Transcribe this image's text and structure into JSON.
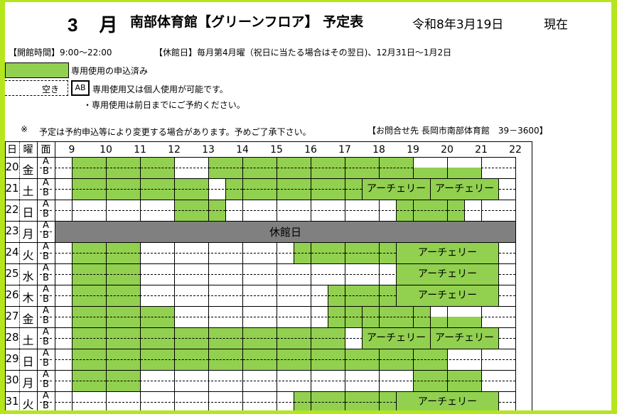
{
  "header": {
    "month": "3　月",
    "title": "南部体育館【グリーンフロア】 予定表",
    "date": "令和8年3月19日",
    "as_of": "現在"
  },
  "info": {
    "hours": "【開館時間】9:00～22:00",
    "closed_days": "【休館日】毎月第4月曜（祝日に当たる場合はその翌日)、12月31日～1月2日",
    "legend_booked": "専用使用の申込済み",
    "legend_empty": "空き",
    "legend_ab": "AB",
    "legend_ab_text": "専用使用又は個人使用が可能です。",
    "note_prior_day": "・専用使用は前日までにご予約ください。",
    "note_mark": "※",
    "note_change": "予定は予約申込等により変更する場合があります。予めご了承下さい。",
    "contact": "【お問合せ先 長岡市南部体育館　39－3600】"
  },
  "colors": {
    "booked": "#92d050",
    "closed": "#808080",
    "frame": "#b5e61d"
  },
  "table": {
    "col_day": "日",
    "col_weekday": "曜",
    "col_face": "面",
    "face_a": "A",
    "face_b": "B",
    "hours": [
      "9",
      "10",
      "11",
      "12",
      "13",
      "14",
      "15",
      "16",
      "17",
      "18",
      "19",
      "20",
      "21",
      "22"
    ],
    "rows": [
      {
        "day": "20",
        "weekday": "金",
        "blocks": [
          {
            "s": 9,
            "e": 10,
            "f": "AB"
          },
          {
            "s": 10,
            "e": 11,
            "f": "AB"
          },
          {
            "s": 11,
            "e": 12,
            "f": "AB"
          },
          {
            "s": 13,
            "e": 14,
            "f": "AB"
          },
          {
            "s": 14,
            "e": 15,
            "f": "AB"
          },
          {
            "s": 15,
            "e": 16,
            "f": "AB"
          },
          {
            "s": 16,
            "e": 17,
            "f": "AB"
          },
          {
            "s": 17,
            "e": 18,
            "f": "AB"
          },
          {
            "s": 18,
            "e": 19,
            "f": "AB"
          },
          {
            "s": 19,
            "e": 20,
            "f": "B"
          },
          {
            "s": 20,
            "e": 21,
            "f": "B"
          }
        ]
      },
      {
        "day": "21",
        "weekday": "土",
        "blocks": [
          {
            "s": 9,
            "e": 10,
            "f": "AB"
          },
          {
            "s": 10,
            "e": 11,
            "f": "AB"
          },
          {
            "s": 11,
            "e": 12,
            "f": "AB"
          },
          {
            "s": 12,
            "e": 13,
            "f": "AB"
          },
          {
            "s": 13.5,
            "e": 14,
            "f": "AB"
          },
          {
            "s": 14,
            "e": 15,
            "f": "AB"
          },
          {
            "s": 15,
            "e": 16,
            "f": "AB"
          },
          {
            "s": 16,
            "e": 17,
            "f": "AB"
          },
          {
            "s": 17,
            "e": 17.5,
            "f": "AB"
          },
          {
            "s": 17.5,
            "e": 19.5,
            "f": "AB",
            "label": "アーチェリー"
          },
          {
            "s": 19.5,
            "e": 21.5,
            "f": "AB",
            "label": "アーチェリー"
          }
        ]
      },
      {
        "day": "22",
        "weekday": "日",
        "blocks": [
          {
            "s": 12,
            "e": 13,
            "f": "AB"
          },
          {
            "s": 13,
            "e": 13.5,
            "f": "AB"
          },
          {
            "s": 18.5,
            "e": 19,
            "f": "AB"
          },
          {
            "s": 19,
            "e": 20,
            "f": "AB"
          },
          {
            "s": 20,
            "e": 20.5,
            "f": "AB"
          }
        ]
      },
      {
        "day": "23",
        "weekday": "月",
        "closed": "休館日",
        "blocks": []
      },
      {
        "day": "24",
        "weekday": "火",
        "blocks": [
          {
            "s": 9,
            "e": 10,
            "f": "AB"
          },
          {
            "s": 10,
            "e": 11,
            "f": "AB"
          },
          {
            "s": 15.5,
            "e": 16,
            "f": "AB"
          },
          {
            "s": 16,
            "e": 17,
            "f": "AB"
          },
          {
            "s": 17,
            "e": 18,
            "f": "AB"
          },
          {
            "s": 18,
            "e": 18.5,
            "f": "AB"
          },
          {
            "s": 18.5,
            "e": 21.5,
            "f": "AB",
            "label": "アーチェリー"
          }
        ]
      },
      {
        "day": "25",
        "weekday": "水",
        "blocks": [
          {
            "s": 9,
            "e": 10,
            "f": "AB"
          },
          {
            "s": 10,
            "e": 11,
            "f": "AB"
          },
          {
            "s": 18.5,
            "e": 21.5,
            "f": "AB",
            "label": "アーチェリー"
          }
        ]
      },
      {
        "day": "26",
        "weekday": "木",
        "blocks": [
          {
            "s": 9,
            "e": 10,
            "f": "AB"
          },
          {
            "s": 10,
            "e": 11,
            "f": "AB"
          },
          {
            "s": 16.5,
            "e": 17,
            "f": "AB"
          },
          {
            "s": 17,
            "e": 18,
            "f": "AB"
          },
          {
            "s": 18,
            "e": 18.5,
            "f": "AB"
          },
          {
            "s": 18.5,
            "e": 21.5,
            "f": "AB",
            "label": "アーチェリー"
          }
        ]
      },
      {
        "day": "27",
        "weekday": "金",
        "blocks": [
          {
            "s": 9,
            "e": 10,
            "f": "AB"
          },
          {
            "s": 10,
            "e": 11,
            "f": "AB"
          },
          {
            "s": 11,
            "e": 12,
            "f": "AB"
          },
          {
            "s": 16.5,
            "e": 17,
            "f": "AB"
          },
          {
            "s": 17,
            "e": 17.5,
            "f": "AB"
          },
          {
            "s": 17.5,
            "e": 18,
            "f": "AB"
          },
          {
            "s": 18,
            "e": 19,
            "f": "AB"
          },
          {
            "s": 19,
            "e": 19.5,
            "f": "AB"
          },
          {
            "s": 19.5,
            "e": 20,
            "f": "B"
          },
          {
            "s": 20,
            "e": 21,
            "f": "B"
          }
        ]
      },
      {
        "day": "28",
        "weekday": "土",
        "blocks": [
          {
            "s": 9,
            "e": 10,
            "f": "AB"
          },
          {
            "s": 10,
            "e": 11,
            "f": "AB"
          },
          {
            "s": 11,
            "e": 12,
            "f": "AB"
          },
          {
            "s": 12,
            "e": 13,
            "f": "AB"
          },
          {
            "s": 13,
            "e": 14,
            "f": "AB"
          },
          {
            "s": 14,
            "e": 15,
            "f": "AB"
          },
          {
            "s": 15,
            "e": 16,
            "f": "AB"
          },
          {
            "s": 16,
            "e": 17,
            "f": "AB"
          },
          {
            "s": 17.5,
            "e": 19.5,
            "f": "AB",
            "label": "アーチェリー"
          },
          {
            "s": 19.5,
            "e": 21.5,
            "f": "AB",
            "label": "アーチェリー"
          }
        ]
      },
      {
        "day": "29",
        "weekday": "日",
        "blocks": [
          {
            "s": 9,
            "e": 10,
            "f": "AB"
          },
          {
            "s": 10,
            "e": 11,
            "f": "AB"
          },
          {
            "s": 11,
            "e": 12,
            "f": "AB"
          },
          {
            "s": 12,
            "e": 13,
            "f": "AB"
          },
          {
            "s": 13,
            "e": 14,
            "f": "AB"
          },
          {
            "s": 14,
            "e": 15,
            "f": "AB"
          },
          {
            "s": 15,
            "e": 16,
            "f": "AB"
          },
          {
            "s": 16,
            "e": 17,
            "f": "AB"
          },
          {
            "s": 17,
            "e": 18,
            "f": "AB"
          },
          {
            "s": 18,
            "e": 19,
            "f": "AB"
          },
          {
            "s": 19,
            "e": 20,
            "f": "AB"
          }
        ]
      },
      {
        "day": "30",
        "weekday": "月",
        "blocks": [
          {
            "s": 9,
            "e": 10,
            "f": "AB"
          },
          {
            "s": 10,
            "e": 11,
            "f": "AB"
          },
          {
            "s": 19,
            "e": 20,
            "f": "AB"
          },
          {
            "s": 20,
            "e": 21,
            "f": "AB"
          }
        ]
      },
      {
        "day": "31",
        "weekday": "火",
        "blocks": [
          {
            "s": 15.5,
            "e": 16,
            "f": "AB"
          },
          {
            "s": 16,
            "e": 17,
            "f": "AB"
          },
          {
            "s": 17,
            "e": 18,
            "f": "AB"
          },
          {
            "s": 18,
            "e": 18.5,
            "f": "AB"
          },
          {
            "s": 18.5,
            "e": 21.5,
            "f": "AB",
            "label": "アーチェリー"
          }
        ]
      }
    ]
  }
}
